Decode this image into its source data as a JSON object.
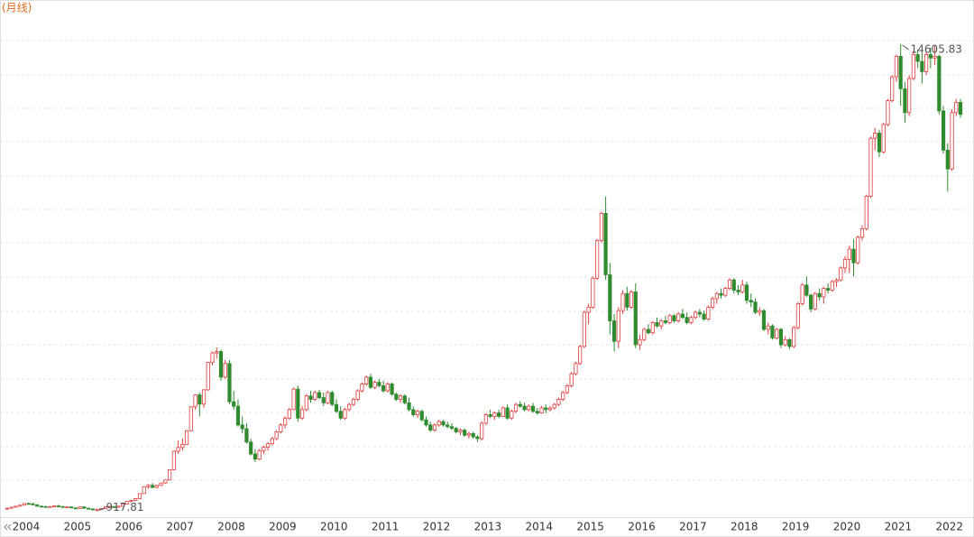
{
  "chart_data": {
    "type": "candlestick",
    "title": "(月线)",
    "up_color": "#e03c3c",
    "down_color": "#2e8b2e",
    "ylim": [
      300,
      15900
    ],
    "high_label": 14605.83,
    "low_label": 917.81,
    "categories": [
      null,
      null,
      null,
      null,
      "2004",
      null,
      null,
      null,
      null,
      null,
      null,
      null,
      null,
      null,
      null,
      null,
      "2005",
      null,
      null,
      null,
      null,
      null,
      null,
      null,
      null,
      null,
      null,
      null,
      "2006",
      null,
      null,
      null,
      null,
      null,
      null,
      null,
      null,
      null,
      null,
      null,
      "2007",
      null,
      null,
      null,
      null,
      null,
      null,
      null,
      null,
      null,
      null,
      null,
      "2008",
      null,
      null,
      null,
      null,
      null,
      null,
      null,
      null,
      null,
      null,
      null,
      "2009",
      null,
      null,
      null,
      null,
      null,
      null,
      null,
      null,
      null,
      null,
      null,
      "2010",
      null,
      null,
      null,
      null,
      null,
      null,
      null,
      null,
      null,
      null,
      null,
      "2011",
      null,
      null,
      null,
      null,
      null,
      null,
      null,
      null,
      null,
      null,
      null,
      "2012",
      null,
      null,
      null,
      null,
      null,
      null,
      null,
      null,
      null,
      null,
      null,
      "2013",
      null,
      null,
      null,
      null,
      null,
      null,
      null,
      null,
      null,
      null,
      null,
      "2014",
      null,
      null,
      null,
      null,
      null,
      null,
      null,
      null,
      null,
      null,
      null,
      "2015",
      null,
      null,
      null,
      null,
      null,
      null,
      null,
      null,
      null,
      null,
      null,
      "2016",
      null,
      null,
      null,
      null,
      null,
      null,
      null,
      null,
      null,
      null,
      null,
      "2017",
      null,
      null,
      null,
      null,
      null,
      null,
      null,
      null,
      null,
      null,
      null,
      "2018",
      null,
      null,
      null,
      null,
      null,
      null,
      null,
      null,
      null,
      null,
      null,
      "2019",
      null,
      null,
      null,
      null,
      null,
      null,
      null,
      null,
      null,
      null,
      null,
      "2020",
      null,
      null,
      null,
      null,
      null,
      null,
      null,
      null,
      null,
      null,
      null,
      "2021",
      null,
      null,
      null,
      null,
      null,
      null,
      null,
      null,
      null,
      null,
      null,
      "2022",
      null,
      null,
      null
    ],
    "ohlc": [
      [
        1000,
        1030,
        985,
        1010
      ],
      [
        1010,
        1050,
        1000,
        1040
      ],
      [
        1040,
        1080,
        1030,
        1070
      ],
      [
        1070,
        1110,
        1060,
        1100
      ],
      [
        1100,
        1160,
        1090,
        1150
      ],
      [
        1150,
        1180,
        1120,
        1140
      ],
      [
        1140,
        1170,
        1100,
        1110
      ],
      [
        1110,
        1130,
        1060,
        1070
      ],
      [
        1070,
        1090,
        1040,
        1060
      ],
      [
        1060,
        1080,
        1030,
        1050
      ],
      [
        1050,
        1070,
        1030,
        1060
      ],
      [
        1060,
        1090,
        1040,
        1080
      ],
      [
        1080,
        1110,
        1050,
        1060
      ],
      [
        1060,
        1080,
        1030,
        1040
      ],
      [
        1040,
        1060,
        1020,
        1050
      ],
      [
        1050,
        1060,
        1010,
        1020
      ],
      [
        1020,
        1040,
        990,
        1000
      ],
      [
        1000,
        1060,
        990,
        1050
      ],
      [
        1050,
        1060,
        1000,
        1010
      ],
      [
        1010,
        1030,
        980,
        990
      ],
      [
        990,
        1000,
        950,
        960
      ],
      [
        960,
        990,
        917.81,
        980
      ],
      [
        980,
        1010,
        960,
        1000
      ],
      [
        1000,
        1060,
        990,
        1050
      ],
      [
        1050,
        1080,
        1030,
        1060
      ],
      [
        1060,
        1070,
        1020,
        1040
      ],
      [
        1040,
        1080,
        1030,
        1070
      ],
      [
        1070,
        1140,
        1060,
        1130
      ],
      [
        1130,
        1220,
        1120,
        1210
      ],
      [
        1210,
        1260,
        1190,
        1240
      ],
      [
        1240,
        1300,
        1220,
        1290
      ],
      [
        1290,
        1450,
        1280,
        1440
      ],
      [
        1440,
        1650,
        1430,
        1640
      ],
      [
        1640,
        1720,
        1580,
        1680
      ],
      [
        1680,
        1750,
        1600,
        1620
      ],
      [
        1620,
        1700,
        1600,
        1680
      ],
      [
        1680,
        1760,
        1660,
        1750
      ],
      [
        1750,
        1850,
        1730,
        1840
      ],
      [
        1840,
        2150,
        1830,
        2140
      ],
      [
        2140,
        2700,
        2130,
        2680
      ],
      [
        2680,
        3000,
        2600,
        2790
      ],
      [
        2790,
        3050,
        2700,
        2880
      ],
      [
        2880,
        3300,
        2870,
        3280
      ],
      [
        3280,
        4000,
        3270,
        3980
      ],
      [
        3980,
        4350,
        3900,
        4330
      ],
      [
        4330,
        4400,
        3700,
        4060
      ],
      [
        4060,
        4500,
        3950,
        4480
      ],
      [
        4480,
        5300,
        4450,
        5280
      ],
      [
        5280,
        5600,
        5200,
        5560
      ],
      [
        5560,
        5720,
        5400,
        5600
      ],
      [
        5600,
        5650,
        4750,
        4850
      ],
      [
        4850,
        5350,
        4800,
        5250
      ],
      [
        5250,
        5350,
        4050,
        4130
      ],
      [
        4130,
        4450,
        3900,
        4000
      ],
      [
        4000,
        4200,
        3400,
        3450
      ],
      [
        3450,
        3700,
        3200,
        3340
      ],
      [
        3340,
        3500,
        2900,
        2950
      ],
      [
        2950,
        3050,
        2550,
        2600
      ],
      [
        2600,
        2750,
        2362,
        2450
      ],
      [
        2450,
        2750,
        2420,
        2700
      ],
      [
        2700,
        2850,
        2600,
        2800
      ],
      [
        2800,
        2950,
        2700,
        2900
      ],
      [
        2900,
        3100,
        2850,
        3050
      ],
      [
        3050,
        3300,
        3000,
        3250
      ],
      [
        3250,
        3500,
        3200,
        3450
      ],
      [
        3450,
        3700,
        3350,
        3650
      ],
      [
        3650,
        3950,
        3600,
        3900
      ],
      [
        3900,
        4550,
        3880,
        4500
      ],
      [
        4500,
        4600,
        3550,
        3650
      ],
      [
        3650,
        4000,
        3600,
        3900
      ],
      [
        3900,
        4350,
        3850,
        4300
      ],
      [
        4300,
        4450,
        4100,
        4200
      ],
      [
        4200,
        4450,
        4150,
        4400
      ],
      [
        4400,
        4480,
        4200,
        4250
      ],
      [
        4250,
        4400,
        4000,
        4100
      ],
      [
        4100,
        4450,
        4050,
        4400
      ],
      [
        4400,
        4450,
        4000,
        4050
      ],
      [
        4050,
        4200,
        3800,
        3850
      ],
      [
        3850,
        4000,
        3600,
        3650
      ],
      [
        3650,
        3950,
        3600,
        3900
      ],
      [
        3900,
        4100,
        3850,
        4050
      ],
      [
        4050,
        4250,
        4000,
        4200
      ],
      [
        4200,
        4500,
        4150,
        4450
      ],
      [
        4450,
        4700,
        4400,
        4650
      ],
      [
        4650,
        4900,
        4600,
        4850
      ],
      [
        4850,
        4950,
        4500,
        4550
      ],
      [
        4550,
        4750,
        4500,
        4700
      ],
      [
        4700,
        4800,
        4550,
        4600
      ],
      [
        4600,
        4750,
        4400,
        4450
      ],
      [
        4450,
        4700,
        4400,
        4650
      ],
      [
        4650,
        4700,
        4300,
        4350
      ],
      [
        4350,
        4400,
        4150,
        4200
      ],
      [
        4200,
        4350,
        4100,
        4300
      ],
      [
        4300,
        4350,
        4050,
        4100
      ],
      [
        4100,
        4250,
        3850,
        3900
      ],
      [
        3900,
        4000,
        3700,
        3750
      ],
      [
        3750,
        3900,
        3650,
        3850
      ],
      [
        3850,
        3900,
        3550,
        3600
      ],
      [
        3600,
        3700,
        3400,
        3450
      ],
      [
        3450,
        3550,
        3250,
        3300
      ],
      [
        3300,
        3500,
        3250,
        3450
      ],
      [
        3450,
        3600,
        3400,
        3550
      ],
      [
        3550,
        3600,
        3400,
        3450
      ],
      [
        3450,
        3550,
        3350,
        3400
      ],
      [
        3400,
        3500,
        3300,
        3350
      ],
      [
        3350,
        3400,
        3200,
        3250
      ],
      [
        3250,
        3350,
        3150,
        3300
      ],
      [
        3300,
        3350,
        3100,
        3150
      ],
      [
        3150,
        3250,
        3050,
        3200
      ],
      [
        3200,
        3250,
        3050,
        3100
      ],
      [
        3100,
        3150,
        2950,
        3050
      ],
      [
        3050,
        3550,
        3000,
        3500
      ],
      [
        3500,
        3800,
        3450,
        3750
      ],
      [
        3750,
        3900,
        3650,
        3700
      ],
      [
        3700,
        3850,
        3600,
        3800
      ],
      [
        3800,
        3900,
        3650,
        3700
      ],
      [
        3700,
        4000,
        3680,
        3950
      ],
      [
        3950,
        4050,
        3600,
        3650
      ],
      [
        3650,
        3900,
        3600,
        3850
      ],
      [
        3850,
        4100,
        3800,
        4050
      ],
      [
        4050,
        4150,
        3950,
        4000
      ],
      [
        4000,
        4100,
        3850,
        3900
      ],
      [
        3900,
        4050,
        3850,
        4000
      ],
      [
        4000,
        4100,
        3800,
        3850
      ],
      [
        3850,
        3950,
        3750,
        3800
      ],
      [
        3800,
        4000,
        3780,
        3950
      ],
      [
        3950,
        4050,
        3800,
        3900
      ],
      [
        3900,
        4000,
        3850,
        3950
      ],
      [
        3950,
        4100,
        3900,
        4050
      ],
      [
        4050,
        4250,
        4000,
        4200
      ],
      [
        4200,
        4450,
        4150,
        4400
      ],
      [
        4400,
        4650,
        4350,
        4600
      ],
      [
        4600,
        5000,
        4550,
        4950
      ],
      [
        4950,
        5300,
        4900,
        5250
      ],
      [
        5250,
        5800,
        5200,
        5750
      ],
      [
        5750,
        6800,
        5700,
        6750
      ],
      [
        6750,
        7000,
        6400,
        6900
      ],
      [
        6900,
        7800,
        6850,
        7750
      ],
      [
        7750,
        8900,
        7700,
        8850
      ],
      [
        8850,
        9700,
        8800,
        9650
      ],
      [
        9650,
        10140,
        7700,
        7850
      ],
      [
        7850,
        8200,
        6100,
        6500
      ],
      [
        6500,
        6700,
        5600,
        5900
      ],
      [
        5900,
        6900,
        5700,
        6800
      ],
      [
        6800,
        7400,
        6700,
        7300
      ],
      [
        7300,
        7500,
        6800,
        6900
      ],
      [
        6900,
        7400,
        6850,
        7350
      ],
      [
        7350,
        7600,
        5700,
        5800
      ],
      [
        5800,
        6100,
        5650,
        5950
      ],
      [
        5950,
        6300,
        5900,
        6250
      ],
      [
        6250,
        6400,
        6100,
        6150
      ],
      [
        6150,
        6500,
        6100,
        6450
      ],
      [
        6450,
        6600,
        6300,
        6350
      ],
      [
        6350,
        6550,
        6250,
        6500
      ],
      [
        6500,
        6650,
        6400,
        6450
      ],
      [
        6450,
        6700,
        6400,
        6650
      ],
      [
        6650,
        6700,
        6450,
        6500
      ],
      [
        6500,
        6750,
        6450,
        6700
      ],
      [
        6700,
        6850,
        6550,
        6600
      ],
      [
        6600,
        6750,
        6400,
        6450
      ],
      [
        6450,
        6650,
        6400,
        6600
      ],
      [
        6600,
        6800,
        6550,
        6750
      ],
      [
        6750,
        6850,
        6600,
        6700
      ],
      [
        6700,
        6800,
        6500,
        6550
      ],
      [
        6550,
        6950,
        6500,
        6900
      ],
      [
        6900,
        7200,
        6850,
        7150
      ],
      [
        7150,
        7350,
        7000,
        7300
      ],
      [
        7300,
        7450,
        7150,
        7250
      ],
      [
        7250,
        7500,
        7200,
        7450
      ],
      [
        7450,
        7750,
        7400,
        7700
      ],
      [
        7700,
        7750,
        7300,
        7400
      ],
      [
        7400,
        7550,
        7250,
        7350
      ],
      [
        7350,
        7700,
        7300,
        7550
      ],
      [
        7550,
        7650,
        7000,
        7100
      ],
      [
        7100,
        7300,
        6900,
        7050
      ],
      [
        7050,
        7150,
        6700,
        6750
      ],
      [
        6750,
        6900,
        6650,
        6800
      ],
      [
        6800,
        6850,
        6200,
        6250
      ],
      [
        6250,
        6450,
        6100,
        6350
      ],
      [
        6350,
        6400,
        5950,
        6000
      ],
      [
        6000,
        6300,
        5950,
        6250
      ],
      [
        6250,
        6300,
        5700,
        5800
      ],
      [
        5800,
        6050,
        5750,
        5950
      ],
      [
        5950,
        6000,
        5670,
        5750
      ],
      [
        5750,
        6350,
        5700,
        6300
      ],
      [
        6300,
        7050,
        6250,
        7000
      ],
      [
        7000,
        7600,
        6950,
        7550
      ],
      [
        7550,
        7800,
        7200,
        7250
      ],
      [
        7250,
        7300,
        6750,
        6850
      ],
      [
        6850,
        7350,
        6800,
        7300
      ],
      [
        7300,
        7450,
        7100,
        7200
      ],
      [
        7200,
        7500,
        7000,
        7450
      ],
      [
        7450,
        7600,
        7300,
        7400
      ],
      [
        7400,
        7700,
        7350,
        7650
      ],
      [
        7650,
        7750,
        7500,
        7700
      ],
      [
        7700,
        8100,
        7650,
        8050
      ],
      [
        8050,
        8400,
        7900,
        8300
      ],
      [
        8300,
        8700,
        7900,
        8600
      ],
      [
        8600,
        8900,
        7800,
        8200
      ],
      [
        8200,
        9000,
        8150,
        8950
      ],
      [
        8950,
        9300,
        8850,
        9200
      ],
      [
        9200,
        10200,
        9150,
        10150
      ],
      [
        10150,
        11900,
        10100,
        11850
      ],
      [
        11850,
        12150,
        11500,
        12000
      ],
      [
        12000,
        12100,
        11300,
        11450
      ],
      [
        11450,
        12300,
        11400,
        12250
      ],
      [
        12250,
        13000,
        12200,
        12950
      ],
      [
        12950,
        13700,
        12900,
        13650
      ],
      [
        13650,
        14300,
        13500,
        14250
      ],
      [
        14250,
        14605.83,
        12800,
        13300
      ],
      [
        13300,
        13500,
        12300,
        12600
      ],
      [
        12600,
        13700,
        12500,
        13600
      ],
      [
        13600,
        14400,
        13550,
        14300
      ],
      [
        14300,
        14450,
        13900,
        14100
      ],
      [
        14100,
        14350,
        13450,
        13800
      ],
      [
        13800,
        14400,
        13700,
        14300
      ],
      [
        14300,
        14500,
        13900,
        14200
      ],
      [
        14200,
        14550,
        14000,
        14250
      ],
      [
        14250,
        14300,
        12550,
        12650
      ],
      [
        12650,
        12800,
        11400,
        11500
      ],
      [
        11500,
        11700,
        10280,
        10950
      ],
      [
        10950,
        12700,
        10900,
        12600
      ],
      [
        12600,
        13000,
        12500,
        12900
      ],
      [
        12900,
        13000,
        12450,
        12550
      ]
    ]
  }
}
